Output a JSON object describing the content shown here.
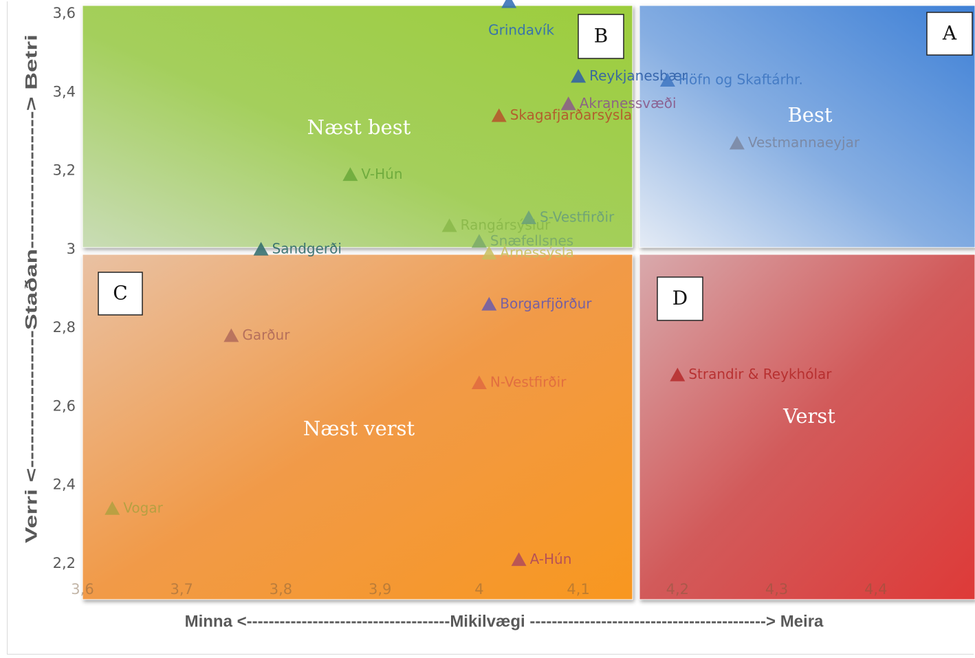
{
  "chart_data": {
    "type": "scatter",
    "title": "",
    "xlabel": "Minna <-------------------------------------Mikilvægi -------------------------------------------> Meira",
    "ylabel": "Verri <-----------------Staðan-----------------> Betri",
    "xlim": [
      3.6,
      4.5
    ],
    "ylim": [
      2.2,
      3.6
    ],
    "x_ticks": [
      "3,6",
      "3,7",
      "3,8",
      "3,9",
      "4",
      "4,1",
      "4,2",
      "4,3",
      "4,4"
    ],
    "y_ticks": [
      "2,2",
      "2,4",
      "2,6",
      "2,8",
      "3",
      "3,2",
      "3,4",
      "3,6"
    ],
    "grid": false,
    "quadrants": [
      {
        "letter": "A",
        "label": "Best",
        "color": "#4a86d6"
      },
      {
        "letter": "B",
        "label": "Næst best",
        "color": "#9fce4a"
      },
      {
        "letter": "C",
        "label": "",
        "color": "#f2973a"
      },
      {
        "letter": "D",
        "label": "Verst",
        "color": "#d94a4a"
      },
      {
        "letter": "",
        "label": "Næst verst",
        "color": "#f2973a"
      }
    ],
    "points": [
      {
        "label": "Grindavík",
        "x": 4.03,
        "y": 3.63,
        "color": "#2e6bb5"
      },
      {
        "label": "Reykjanesbær",
        "x": 4.1,
        "y": 3.44,
        "color": "#2e5fa8"
      },
      {
        "label": "Höfn og Skaftárhr.",
        "x": 4.19,
        "y": 3.43,
        "color": "#3f77c2"
      },
      {
        "label": "Akranessvæði",
        "x": 4.09,
        "y": 3.37,
        "color": "#8a5a8a"
      },
      {
        "label": "Skagafjarðarsýsla",
        "x": 4.02,
        "y": 3.34,
        "color": "#b5532a"
      },
      {
        "label": "Vestmannaeyjar",
        "x": 4.26,
        "y": 3.27,
        "color": "#7a86a0"
      },
      {
        "label": "V-Hún",
        "x": 3.87,
        "y": 3.19,
        "color": "#6aa83a"
      },
      {
        "label": "Rangársýslur",
        "x": 3.97,
        "y": 3.06,
        "color": "#8ab84a"
      },
      {
        "label": "S-Vestfirðir",
        "x": 4.05,
        "y": 3.08,
        "color": "#6aa07a"
      },
      {
        "label": "Snæfellsnes",
        "x": 4.0,
        "y": 3.02,
        "color": "#7aaa6a"
      },
      {
        "label": "Sandgerði",
        "x": 3.78,
        "y": 3.0,
        "color": "#2e6a6a"
      },
      {
        "label": "Árnessýsla",
        "x": 4.01,
        "y": 2.99,
        "color": "#c8c060"
      },
      {
        "label": "Borgarfjörður",
        "x": 4.01,
        "y": 2.86,
        "color": "#6a5aaa"
      },
      {
        "label": "Garður",
        "x": 3.75,
        "y": 2.78,
        "color": "#b06a5a"
      },
      {
        "label": "N-Vestfirðir",
        "x": 4.0,
        "y": 2.66,
        "color": "#e06a40"
      },
      {
        "label": "Strandir & Reykhólar",
        "x": 4.2,
        "y": 2.68,
        "color": "#b52a2a"
      },
      {
        "label": "Vogar",
        "x": 3.63,
        "y": 2.34,
        "color": "#b0a040"
      },
      {
        "label": "A-Hún",
        "x": 4.04,
        "y": 2.21,
        "color": "#b04a5a"
      }
    ]
  }
}
